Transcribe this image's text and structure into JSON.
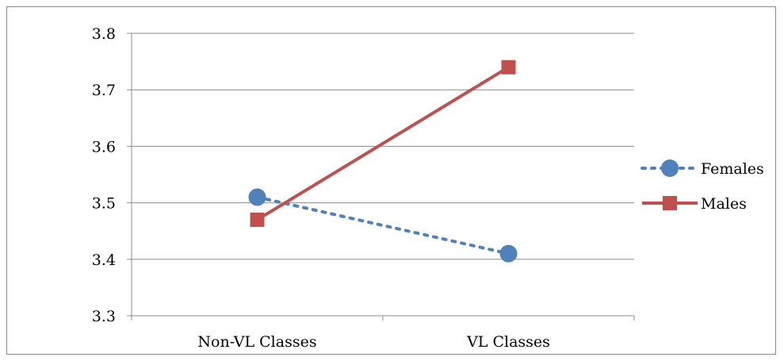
{
  "chart_data": {
    "type": "line",
    "categories": [
      "Non-VL Classes",
      "VL Classes"
    ],
    "series": [
      {
        "name": "Females",
        "values": [
          3.51,
          3.41
        ],
        "color": "#4f81bd",
        "line": "dotted",
        "marker": "circle"
      },
      {
        "name": "Males",
        "values": [
          3.47,
          3.74
        ],
        "color": "#c0504d",
        "line": "solid",
        "marker": "square"
      }
    ],
    "ylim": [
      3.3,
      3.8
    ],
    "yticks": [
      "3.3",
      "3.4",
      "3.5",
      "3.6",
      "3.7",
      "3.8"
    ],
    "grid": true,
    "legend": "right"
  }
}
